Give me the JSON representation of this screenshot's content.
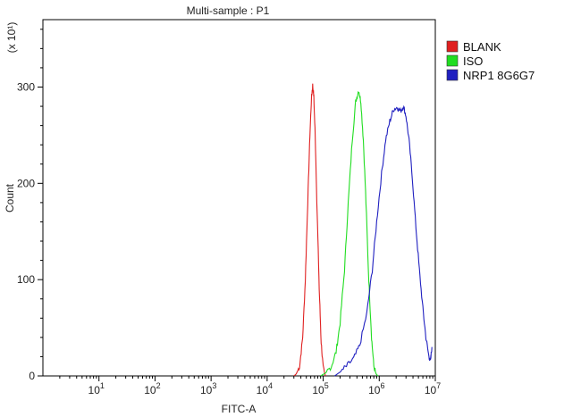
{
  "chart_data": {
    "type": "line",
    "title": "Multi-sample : P1",
    "xlabel": "FITC-A",
    "ylabel": "Count",
    "y_multiplier": "(x 10¹)",
    "x_scale": "log",
    "xlim": [
      1,
      10000000
    ],
    "ylim": [
      0,
      370
    ],
    "x_ticks": [
      {
        "value": 10,
        "base": "10",
        "exp": "1"
      },
      {
        "value": 100,
        "base": "10",
        "exp": "2"
      },
      {
        "value": 1000,
        "base": "10",
        "exp": "3"
      },
      {
        "value": 10000,
        "base": "10",
        "exp": "4"
      },
      {
        "value": 100000,
        "base": "10",
        "exp": "5"
      },
      {
        "value": 1000000,
        "base": "10",
        "exp": "6"
      },
      {
        "value": 10000000,
        "base": "10",
        "exp": "7"
      }
    ],
    "y_ticks": [
      0,
      100,
      200,
      300
    ],
    "series": [
      {
        "name": "BLANK",
        "color": "#e02020",
        "points": [
          [
            30000,
            0
          ],
          [
            33000,
            2
          ],
          [
            38000,
            10
          ],
          [
            43000,
            40
          ],
          [
            48000,
            100
          ],
          [
            53000,
            180
          ],
          [
            58000,
            250
          ],
          [
            62000,
            290
          ],
          [
            65000,
            302
          ],
          [
            68000,
            290
          ],
          [
            72000,
            250
          ],
          [
            78000,
            170
          ],
          [
            85000,
            90
          ],
          [
            92000,
            35
          ],
          [
            100000,
            8
          ],
          [
            110000,
            0
          ]
        ]
      },
      {
        "name": "ISO",
        "color": "#20dd20",
        "points": [
          [
            90000,
            0
          ],
          [
            110000,
            3
          ],
          [
            140000,
            10
          ],
          [
            170000,
            25
          ],
          [
            200000,
            55
          ],
          [
            240000,
            110
          ],
          [
            280000,
            180
          ],
          [
            330000,
            245
          ],
          [
            380000,
            285
          ],
          [
            430000,
            297
          ],
          [
            470000,
            285
          ],
          [
            520000,
            245
          ],
          [
            580000,
            180
          ],
          [
            650000,
            100
          ],
          [
            730000,
            40
          ],
          [
            800000,
            10
          ],
          [
            880000,
            2
          ],
          [
            950000,
            0
          ]
        ]
      },
      {
        "name": "NRP1 8G6G7",
        "color": "#2020c0",
        "points": [
          [
            160000,
            0
          ],
          [
            200000,
            4
          ],
          [
            260000,
            10
          ],
          [
            350000,
            18
          ],
          [
            450000,
            32
          ],
          [
            600000,
            65
          ],
          [
            750000,
            110
          ],
          [
            900000,
            160
          ],
          [
            1100000,
            210
          ],
          [
            1300000,
            245
          ],
          [
            1550000,
            265
          ],
          [
            1800000,
            277
          ],
          [
            2100000,
            279
          ],
          [
            2400000,
            275
          ],
          [
            2700000,
            280
          ],
          [
            3000000,
            270
          ],
          [
            3400000,
            245
          ],
          [
            3900000,
            205
          ],
          [
            4500000,
            155
          ],
          [
            5200000,
            110
          ],
          [
            6000000,
            70
          ],
          [
            6800000,
            40
          ],
          [
            7600000,
            22
          ],
          [
            8200000,
            15
          ],
          [
            8700000,
            30
          ]
        ]
      }
    ],
    "legend_position": "top-right",
    "grid": false
  }
}
